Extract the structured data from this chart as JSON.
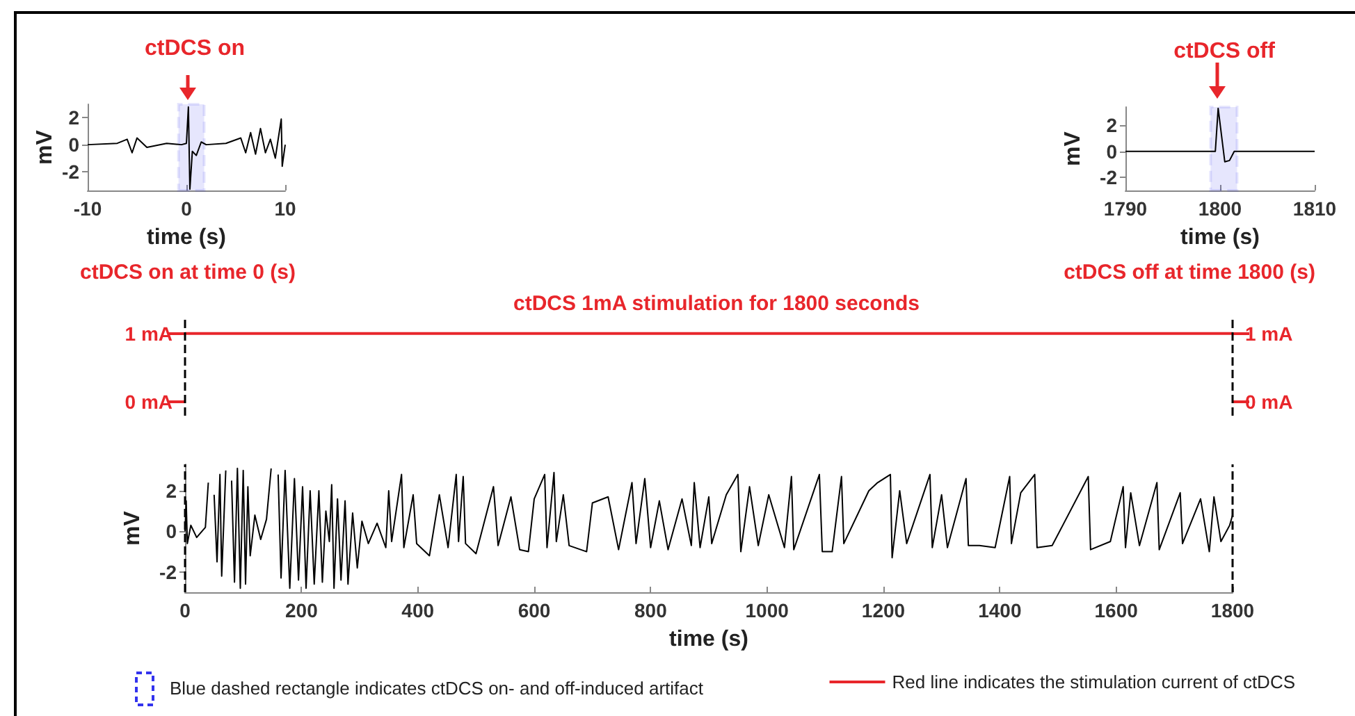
{
  "chart_data": [
    {
      "type": "line",
      "title": "ctDCS on",
      "xlabel": "time (s)",
      "ylabel": "mV",
      "annotations": [
        "ctDCS on at time 0 (s)"
      ],
      "x": [
        -10,
        -7,
        -6,
        -5.5,
        -5,
        -4,
        -2,
        -0.5,
        0,
        0.2,
        0.35,
        0.6,
        1.0,
        1.5,
        2,
        4,
        5.5,
        6,
        6.5,
        7,
        7.5,
        8,
        8.5,
        9,
        9.6,
        9.7,
        10
      ],
      "values": [
        0,
        0.1,
        0.4,
        -0.6,
        0.5,
        -0.2,
        0.1,
        0,
        0.1,
        2.8,
        -3.3,
        -0.5,
        -0.8,
        0.2,
        0,
        0.1,
        0.5,
        -0.6,
        0.9,
        -0.7,
        1.2,
        -0.6,
        0.4,
        -1.0,
        1.9,
        -1.6,
        0
      ],
      "color": "#000000",
      "xlim": [
        -10,
        10
      ],
      "xticks": [
        -10,
        0,
        10
      ],
      "ylim": [
        -3.4,
        3
      ],
      "yticks": [
        -2,
        0,
        2
      ],
      "bands": [
        {
          "axis": "x",
          "from": -0.8,
          "to": 1.8,
          "color": "#3333ee"
        }
      ],
      "grid": false
    },
    {
      "type": "line",
      "title": "ctDCS off",
      "xlabel": "time (s)",
      "ylabel": "mV",
      "annotations": [
        "ctDCS off at time 1800 (s)"
      ],
      "x": [
        1790,
        1795,
        1799,
        1799.5,
        1799.8,
        1800.5,
        1801,
        1801.5,
        1805,
        1810
      ],
      "values": [
        0,
        0,
        0,
        0,
        3.3,
        -0.8,
        -0.7,
        0,
        0,
        0
      ],
      "color": "#000000",
      "xlim": [
        1790,
        1810
      ],
      "xticks": [
        1790,
        1800,
        1810
      ],
      "ylim": [
        -3,
        3.4
      ],
      "yticks": [
        -2,
        0,
        2
      ],
      "bands": [
        {
          "axis": "x",
          "from": 1799,
          "to": 1801.8,
          "color": "#3333ee"
        }
      ],
      "grid": false
    },
    {
      "type": "line",
      "title": "ctDCS 1mA stimulation for 1800 seconds",
      "series": [
        {
          "name": "Red line indicates the stimulation current of ctDCS",
          "color": "#e8262b",
          "x": [
            0,
            1800
          ],
          "values": [
            1,
            1
          ]
        }
      ],
      "xlim": [
        0,
        1800
      ],
      "ylim": [
        -0.2,
        1.2
      ],
      "yticks": [
        {
          "value": 0,
          "label": "0 mA"
        },
        {
          "value": 1,
          "label": "1 mA"
        }
      ],
      "y2lim": [
        -0.2,
        1.2
      ],
      "y2ticks": [
        {
          "value": 0,
          "label": "0 mA"
        },
        {
          "value": 1,
          "label": "1 mA"
        }
      ],
      "tick_labels": "y",
      "legend": "bottom right",
      "grid": false,
      "ref_lines": [
        {
          "axis": "x",
          "value": 0,
          "color": "#000000",
          "line_style": "dashed"
        },
        {
          "axis": "x",
          "value": 1800,
          "color": "#000000",
          "line_style": "dashed"
        }
      ]
    },
    {
      "type": "line",
      "xlabel": "time (s)",
      "ylabel": "mV",
      "annotations": [
        "Blue dashed rectangle indicates ctDCS on- and off-induced artifact"
      ],
      "x": [
        0,
        2,
        4,
        10,
        20,
        35,
        40,
        42,
        50,
        55,
        60,
        63,
        70,
        75,
        80,
        85,
        90,
        95,
        100,
        104,
        108,
        112,
        120,
        130,
        140,
        148,
        152,
        160,
        165,
        172,
        180,
        188,
        195,
        202,
        208,
        215,
        222,
        230,
        236,
        242,
        248,
        252,
        256,
        262,
        268,
        275,
        280,
        288,
        296,
        304,
        315,
        330,
        345,
        350,
        355,
        372,
        376,
        392,
        398,
        420,
        437,
        452,
        466,
        470,
        478,
        482,
        500,
        530,
        538,
        560,
        575,
        590,
        600,
        618,
        622,
        634,
        638,
        650,
        660,
        690,
        700,
        727,
        745,
        768,
        775,
        790,
        800,
        815,
        830,
        854,
        870,
        875,
        885,
        900,
        905,
        930,
        950,
        955,
        970,
        985,
        1003,
        1030,
        1042,
        1046,
        1090,
        1095,
        1112,
        1128,
        1132,
        1175,
        1190,
        1212,
        1215,
        1228,
        1240,
        1280,
        1284,
        1300,
        1310,
        1342,
        1346,
        1365,
        1392,
        1417,
        1420,
        1436,
        1460,
        1464,
        1490,
        1552,
        1556,
        1590,
        1612,
        1616,
        1625,
        1640,
        1670,
        1674,
        1710,
        1714,
        1745,
        1760,
        1768,
        1780,
        1795,
        1800
      ],
      "values": [
        0,
        1.5,
        -0.6,
        0.3,
        -0.3,
        0.2,
        2.4,
        null,
        1.8,
        -1.5,
        2.8,
        -2.2,
        3.0,
        null,
        2.5,
        -2.5,
        3.1,
        -2.8,
        3.0,
        -2.6,
        2.2,
        -1.2,
        0.8,
        -0.4,
        0.6,
        3.1,
        null,
        2.8,
        -2.3,
        3.0,
        -2.8,
        2.6,
        -2.4,
        2.2,
        -2.8,
        2.0,
        -2.6,
        2.0,
        -2.5,
        1.0,
        -0.5,
        2.3,
        -2.8,
        1.6,
        -2.4,
        1.5,
        -2.6,
        0.9,
        -1.8,
        0.5,
        -0.6,
        0.4,
        -0.8,
        2.0,
        -0.5,
        2.8,
        -0.8,
        1.8,
        -0.6,
        -1.2,
        1.8,
        -0.8,
        2.8,
        -0.5,
        2.7,
        -0.6,
        -1.1,
        2.2,
        -0.7,
        1.7,
        -0.9,
        -1.0,
        1.6,
        2.8,
        -0.8,
        2.9,
        -0.5,
        1.8,
        -0.7,
        -1.0,
        1.4,
        1.7,
        -0.9,
        2.4,
        -0.6,
        2.6,
        -0.8,
        1.5,
        -0.9,
        1.6,
        -0.7,
        2.4,
        -0.8,
        1.7,
        -0.6,
        1.8,
        2.8,
        -1.0,
        2.2,
        -0.7,
        1.8,
        -0.8,
        2.7,
        -0.9,
        2.8,
        -1.0,
        -1.0,
        2.7,
        -0.6,
        2.0,
        2.4,
        2.8,
        -1.3,
        2.0,
        -0.6,
        2.8,
        -0.8,
        1.8,
        -0.8,
        2.6,
        -0.7,
        -0.7,
        -0.8,
        2.7,
        -0.6,
        1.9,
        2.8,
        -0.8,
        -0.7,
        2.7,
        -0.9,
        -0.5,
        2.2,
        -0.8,
        1.9,
        -0.7,
        2.4,
        -0.9,
        1.9,
        -0.6,
        1.6,
        -1.0,
        1.7,
        -0.5,
        0.3,
        0.8
      ],
      "color": "#000000",
      "xlim": [
        0,
        1800
      ],
      "xticks": [
        0,
        200,
        400,
        600,
        800,
        1000,
        1200,
        1400,
        1600,
        1800
      ],
      "ylim": [
        -3,
        3.3
      ],
      "yticks": [
        -2,
        0,
        2
      ],
      "grid": false,
      "ref_lines": [
        {
          "axis": "x",
          "value": 0,
          "color": "#000000",
          "line_style": "dashed"
        },
        {
          "axis": "x",
          "value": 1800,
          "color": "#000000",
          "line_style": "dashed"
        }
      ]
    }
  ]
}
